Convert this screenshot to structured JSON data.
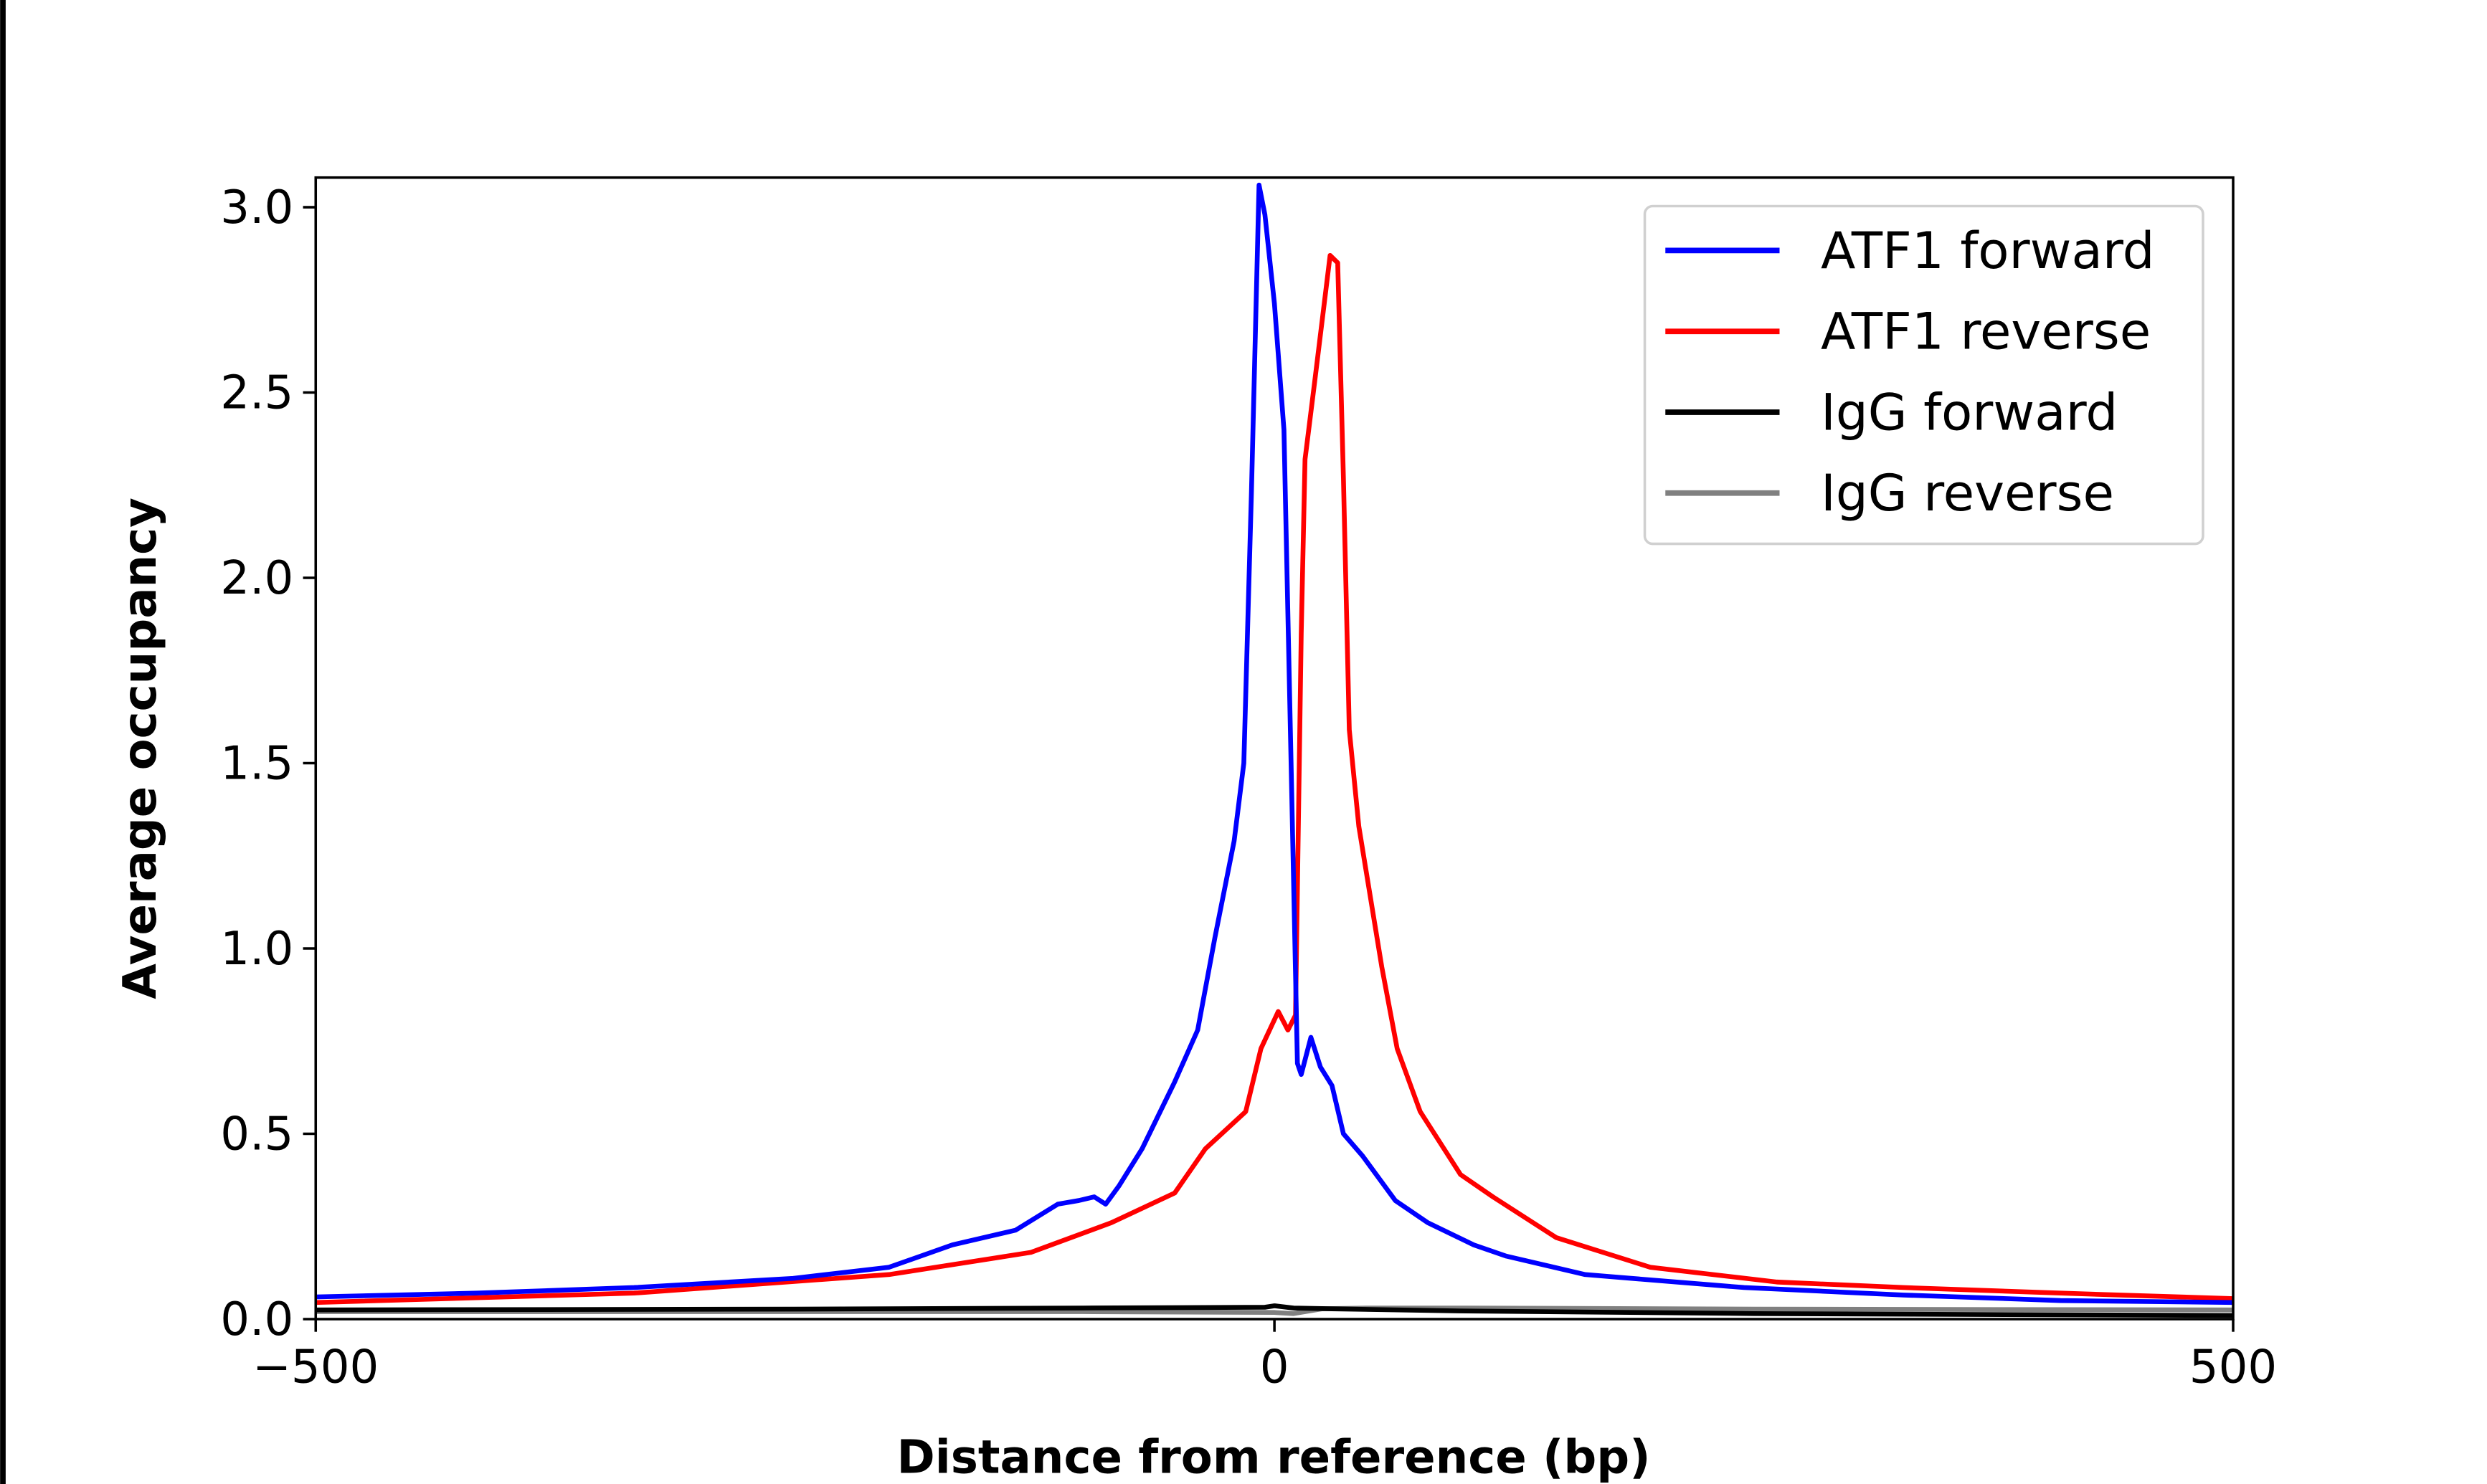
{
  "chart_data": {
    "type": "line",
    "title": "",
    "xlabel": "Distance from reference (bp)",
    "ylabel": "Average occupancy",
    "xlim": [
      -500,
      500
    ],
    "ylim": [
      0,
      3.08
    ],
    "xticks": [
      -500,
      0,
      500
    ],
    "xtick_labels": [
      "−500",
      "0",
      "500"
    ],
    "yticks": [
      0,
      0.5,
      1.0,
      1.5,
      2.0,
      2.5,
      3.0
    ],
    "ytick_labels": [
      "0.0",
      "0.5",
      "1.0",
      "1.5",
      "2.0",
      "2.5",
      "3.0"
    ],
    "grid": false,
    "legend_position": "top-right",
    "series": [
      {
        "name": "ATF1 forward",
        "color": "#0000ff",
        "x": [
          -500,
          -416,
          -334,
          -251,
          -201,
          -168,
          -135,
          -113,
          -102,
          -94,
          -88,
          -81,
          -69,
          -52,
          -40,
          -31,
          -21,
          -16,
          -12,
          -8,
          -5,
          0,
          5,
          9,
          12,
          14,
          19,
          24,
          30,
          36,
          46,
          63,
          80,
          104,
          121,
          162,
          245,
          328,
          410,
          500
        ],
        "y": [
          0.06,
          0.07,
          0.085,
          0.11,
          0.14,
          0.2,
          0.24,
          0.31,
          0.32,
          0.33,
          0.31,
          0.36,
          0.46,
          0.64,
          0.78,
          1.03,
          1.29,
          1.5,
          2.23,
          3.06,
          2.98,
          2.74,
          2.4,
          1.42,
          0.69,
          0.66,
          0.76,
          0.68,
          0.63,
          0.5,
          0.44,
          0.32,
          0.26,
          0.2,
          0.17,
          0.12,
          0.085,
          0.065,
          0.05,
          0.045
        ]
      },
      {
        "name": "ATF1 reverse",
        "color": "#ff0000",
        "x": [
          -500,
          -334,
          -201,
          -127,
          -85,
          -52,
          -36,
          -15,
          -7,
          2,
          7,
          11,
          14,
          16,
          21,
          26,
          29,
          33,
          36,
          39,
          44,
          56,
          64,
          76,
          97,
          114,
          147,
          196,
          262,
          328,
          410,
          500
        ],
        "y": [
          0.045,
          0.07,
          0.12,
          0.18,
          0.26,
          0.34,
          0.46,
          0.56,
          0.73,
          0.83,
          0.78,
          0.82,
          1.85,
          2.32,
          2.53,
          2.74,
          2.87,
          2.85,
          2.27,
          1.59,
          1.33,
          0.95,
          0.73,
          0.56,
          0.39,
          0.33,
          0.22,
          0.14,
          0.1,
          0.085,
          0.07,
          0.055
        ]
      },
      {
        "name": "IgG forward",
        "color": "#000000",
        "x": [
          -500,
          -250,
          -100,
          -5,
          0,
          10,
          30,
          100,
          250,
          500
        ],
        "y": [
          0.025,
          0.027,
          0.03,
          0.032,
          0.036,
          0.03,
          0.028,
          0.022,
          0.015,
          0.01
        ]
      },
      {
        "name": "IgG reverse",
        "color": "#808080",
        "x": [
          -500,
          -250,
          -100,
          0,
          10,
          25,
          50,
          100,
          250,
          500
        ],
        "y": [
          0.02,
          0.02,
          0.02,
          0.018,
          0.015,
          0.028,
          0.03,
          0.03,
          0.027,
          0.025
        ]
      }
    ]
  }
}
